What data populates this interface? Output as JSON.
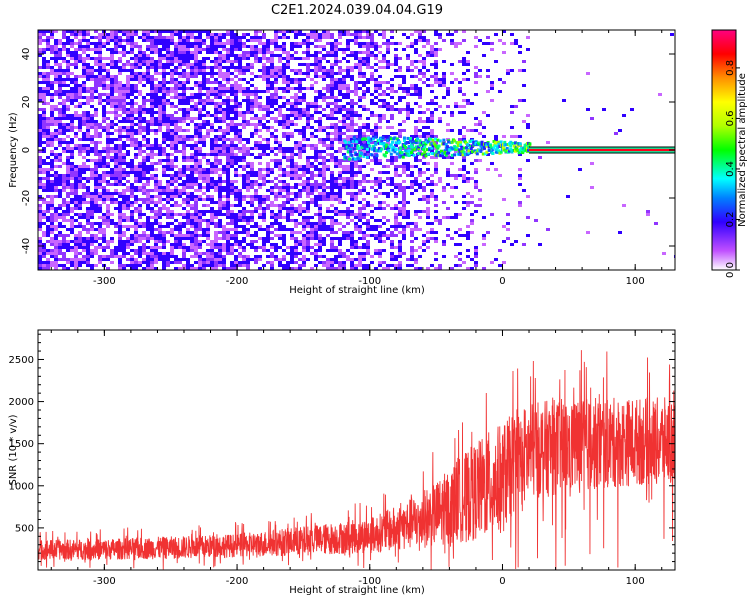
{
  "title": "C2E1.2024.039.04.04.G19",
  "chart_data": [
    {
      "type": "heatmap",
      "xlabel": "Height of straight line (km)",
      "ylabel": "Frequency (Hz)",
      "xlim": [
        -350,
        130
      ],
      "ylim": [
        -50,
        50
      ],
      "xticks": [
        -300,
        -200,
        -100,
        0,
        100
      ],
      "yticks": [
        -40,
        -20,
        0,
        20,
        40
      ],
      "colorbar": {
        "label": "Normalized spectral amplitude",
        "range": [
          0.0,
          0.95
        ],
        "ticks": [
          0.0,
          0.2,
          0.4,
          0.6,
          0.8
        ]
      },
      "features": [
        {
          "x_range": [
            -350,
            -40
          ],
          "amplitude": 0.1
        },
        {
          "x_range": [
            -120,
            20
          ],
          "y_center": 1,
          "amplitude": 0.4
        },
        {
          "x_range": [
            20,
            130
          ],
          "y_center": 0,
          "amplitude": 0.95
        }
      ]
    },
    {
      "type": "line",
      "xlabel": "Height of straight line (km)",
      "ylabel": "SNR (10 * v/v)",
      "xlim": [
        -350,
        130
      ],
      "ylim": [
        0,
        2850
      ],
      "xticks": [
        -300,
        -200,
        -100,
        0,
        100
      ],
      "yticks": [
        500,
        1000,
        1500,
        2000,
        2500
      ],
      "series": [
        {
          "color": "#f03232",
          "envelope_x": [
            -350,
            -300,
            -250,
            -200,
            -150,
            -100,
            -75,
            -50,
            -25,
            -10,
            0,
            10,
            25,
            50,
            75,
            100,
            130
          ],
          "envelope_low": [
            120,
            120,
            130,
            150,
            170,
            200,
            230,
            280,
            340,
            380,
            420,
            700,
            850,
            900,
            950,
            1000,
            1000
          ],
          "envelope_high": [
            360,
            370,
            400,
            430,
            520,
            620,
            800,
            1050,
            1450,
            1650,
            1750,
            1900,
            2000,
            2050,
            2050,
            2050,
            2050
          ]
        }
      ]
    }
  ]
}
